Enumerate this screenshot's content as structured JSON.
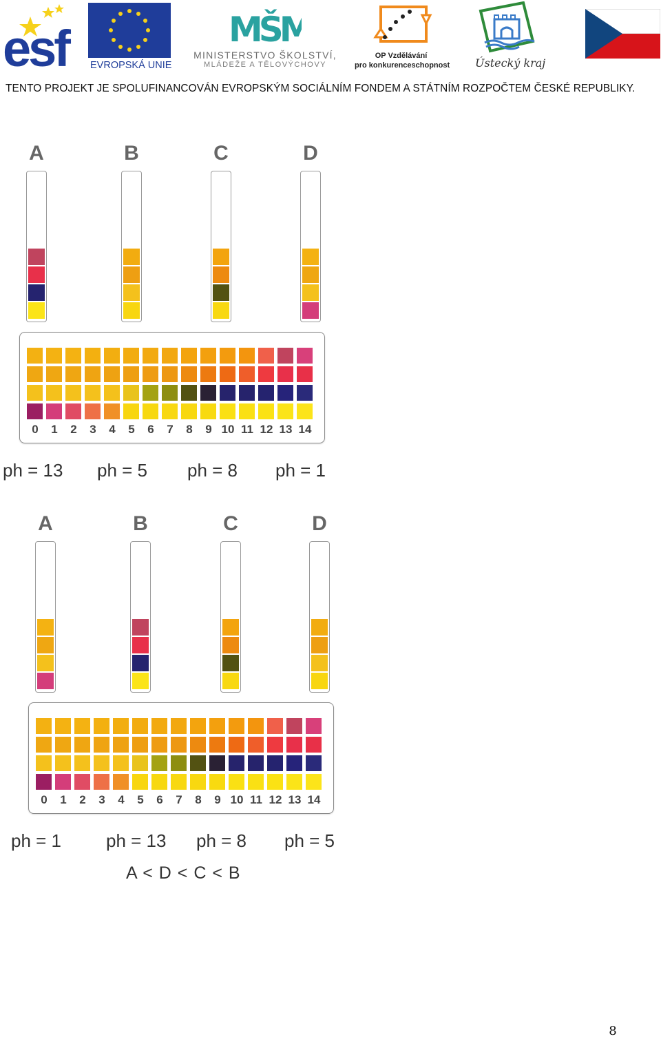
{
  "header": {
    "esf_text": "esf",
    "eu_text": "EVROPSKÁ UNIE",
    "msmt_mark": "MŠMT",
    "msmt_line1": "MINISTERSTVO ŠKOLSTVÍ,",
    "msmt_line2": "MLÁDEŽE A TĚLOVÝCHOVY",
    "op_line1": "OP Vzdělávání",
    "op_line2": "pro konkurenceschopnost",
    "region_name": "Ústecký kraj",
    "banner": "TENTO PROJEKT JE SPOLUFINANCOVÁN EVROPSKÝM SOCIÁLNÍM FONDEM A STÁTNÍM ROZPOČTEM ČESKÉ REPUBLIKY."
  },
  "colors": {
    "eu_blue": "#1f3d9a",
    "eu_star": "#f6d11b",
    "esf_blue": "#1f3d9a",
    "msmt_teal": "#2aa2a0",
    "op_orange": "#f08a1c",
    "flag_blue": "#11457e",
    "flag_red": "#d7141a"
  },
  "scale": {
    "numbers": [
      "0",
      "1",
      "2",
      "3",
      "4",
      "5",
      "6",
      "7",
      "8",
      "9",
      "10",
      "11",
      "12",
      "13",
      "14"
    ],
    "rows": [
      [
        "#f3b112",
        "#f4b212",
        "#f4b212",
        "#f3b010",
        "#f2ae10",
        "#f2ac10",
        "#f2aa10",
        "#f2a810",
        "#f3a40e",
        "#f3a00e",
        "#f39b0e",
        "#f3950e",
        "#f0604a",
        "#c0445e",
        "#d8407a"
      ],
      [
        "#efa712",
        "#efa712",
        "#efa612",
        "#efa412",
        "#eea212",
        "#ee9f12",
        "#ee9c12",
        "#ed9812",
        "#ed8a10",
        "#ed7a10",
        "#ee6a14",
        "#ef5e2a",
        "#ee3a40",
        "#e8304a",
        "#e83048"
      ],
      [
        "#f4c11c",
        "#f4c11c",
        "#f4c11c",
        "#f4c11c",
        "#f4c11c",
        "#e9c31c",
        "#a4a212",
        "#8e8e10",
        "#535212",
        "#2a2134",
        "#26236c",
        "#26236c",
        "#25236f",
        "#26237a",
        "#2a2a7a"
      ],
      [
        "#9b1e62",
        "#d43d7a",
        "#e04c64",
        "#ee7046",
        "#f09026",
        "#f8d610",
        "#f7d810",
        "#f8d810",
        "#f8d810",
        "#f8da10",
        "#fae014",
        "#fae014",
        "#fbe214",
        "#fbe418",
        "#fce41a"
      ]
    ]
  },
  "panel1": {
    "tubes": [
      {
        "letter": "A",
        "ph": "ph = 13",
        "cells": [
          "#c0445e",
          "#e8304a",
          "#25236f",
          "#fbe418"
        ]
      },
      {
        "letter": "B",
        "ph": "ph = 5",
        "cells": [
          "#f2ac10",
          "#ee9f12",
          "#f4c11c",
          "#f8d610"
        ]
      },
      {
        "letter": "C",
        "ph": "ph = 8",
        "cells": [
          "#f3a40e",
          "#ed8a10",
          "#535212",
          "#f8d810"
        ]
      },
      {
        "letter": "D",
        "ph": "ph = 1",
        "cells": [
          "#f4b212",
          "#efa712",
          "#f4c11c",
          "#d43d7a"
        ]
      }
    ]
  },
  "panel2": {
    "tubes": [
      {
        "letter": "A",
        "ph": "ph = 1",
        "cells": [
          "#f4b212",
          "#efa712",
          "#f4c11c",
          "#d43d7a"
        ]
      },
      {
        "letter": "B",
        "ph": "ph = 13",
        "cells": [
          "#c0445e",
          "#e8304a",
          "#25236f",
          "#fbe418"
        ]
      },
      {
        "letter": "C",
        "ph": "ph = 8",
        "cells": [
          "#f3a40e",
          "#ed8a10",
          "#535212",
          "#f8d810"
        ]
      },
      {
        "letter": "D",
        "ph": "ph = 5",
        "cells": [
          "#f2ac10",
          "#ee9f12",
          "#f4c11c",
          "#f8d610"
        ]
      }
    ],
    "order": "A < D < C < B"
  },
  "page_number": "8"
}
